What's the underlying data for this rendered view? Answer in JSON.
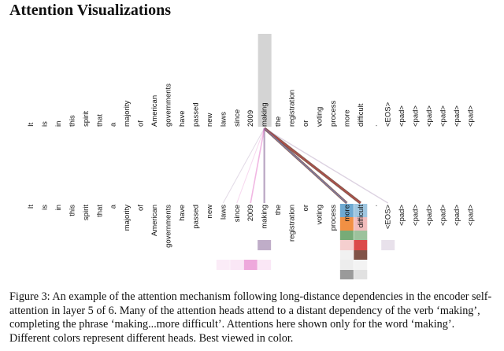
{
  "heading": "Attention Visualizations",
  "tokens": [
    "It",
    "is",
    "in",
    "this",
    "spirit",
    "that",
    "a",
    "majority",
    "of",
    "American",
    "governments",
    "have",
    "passed",
    "new",
    "laws",
    "since",
    "2009",
    "making",
    "the",
    "registration",
    "or",
    "voting",
    "process",
    "more",
    "difficult",
    ".",
    "<EOS>",
    "<pad>",
    "<pad>",
    "<pad>",
    "<pad>",
    "<pad>",
    "<pad>"
  ],
  "focus_token": "making",
  "colors": {
    "highlight": "#d4d4d4",
    "head_1": "#7a4a3e",
    "head_2": "#8a6a9a",
    "head_3": "#4a8f4a",
    "head_4": "#f08a3a",
    "head_5": "#5fa0cc",
    "head_6": "#d94040",
    "head_7": "#e060c0",
    "head_8": "#888888"
  },
  "caption": "Figure 3: An example of the attention mechanism following long-distance dependencies in the encoder self-attention in layer 5 of 6. Many of the attention heads attend to a distant dependency of the verb ‘making’, completing the phrase ‘making...more difficult’. Attentions here shown only for the word ‘making’. Different colors represent different heads. Best viewed in color."
}
